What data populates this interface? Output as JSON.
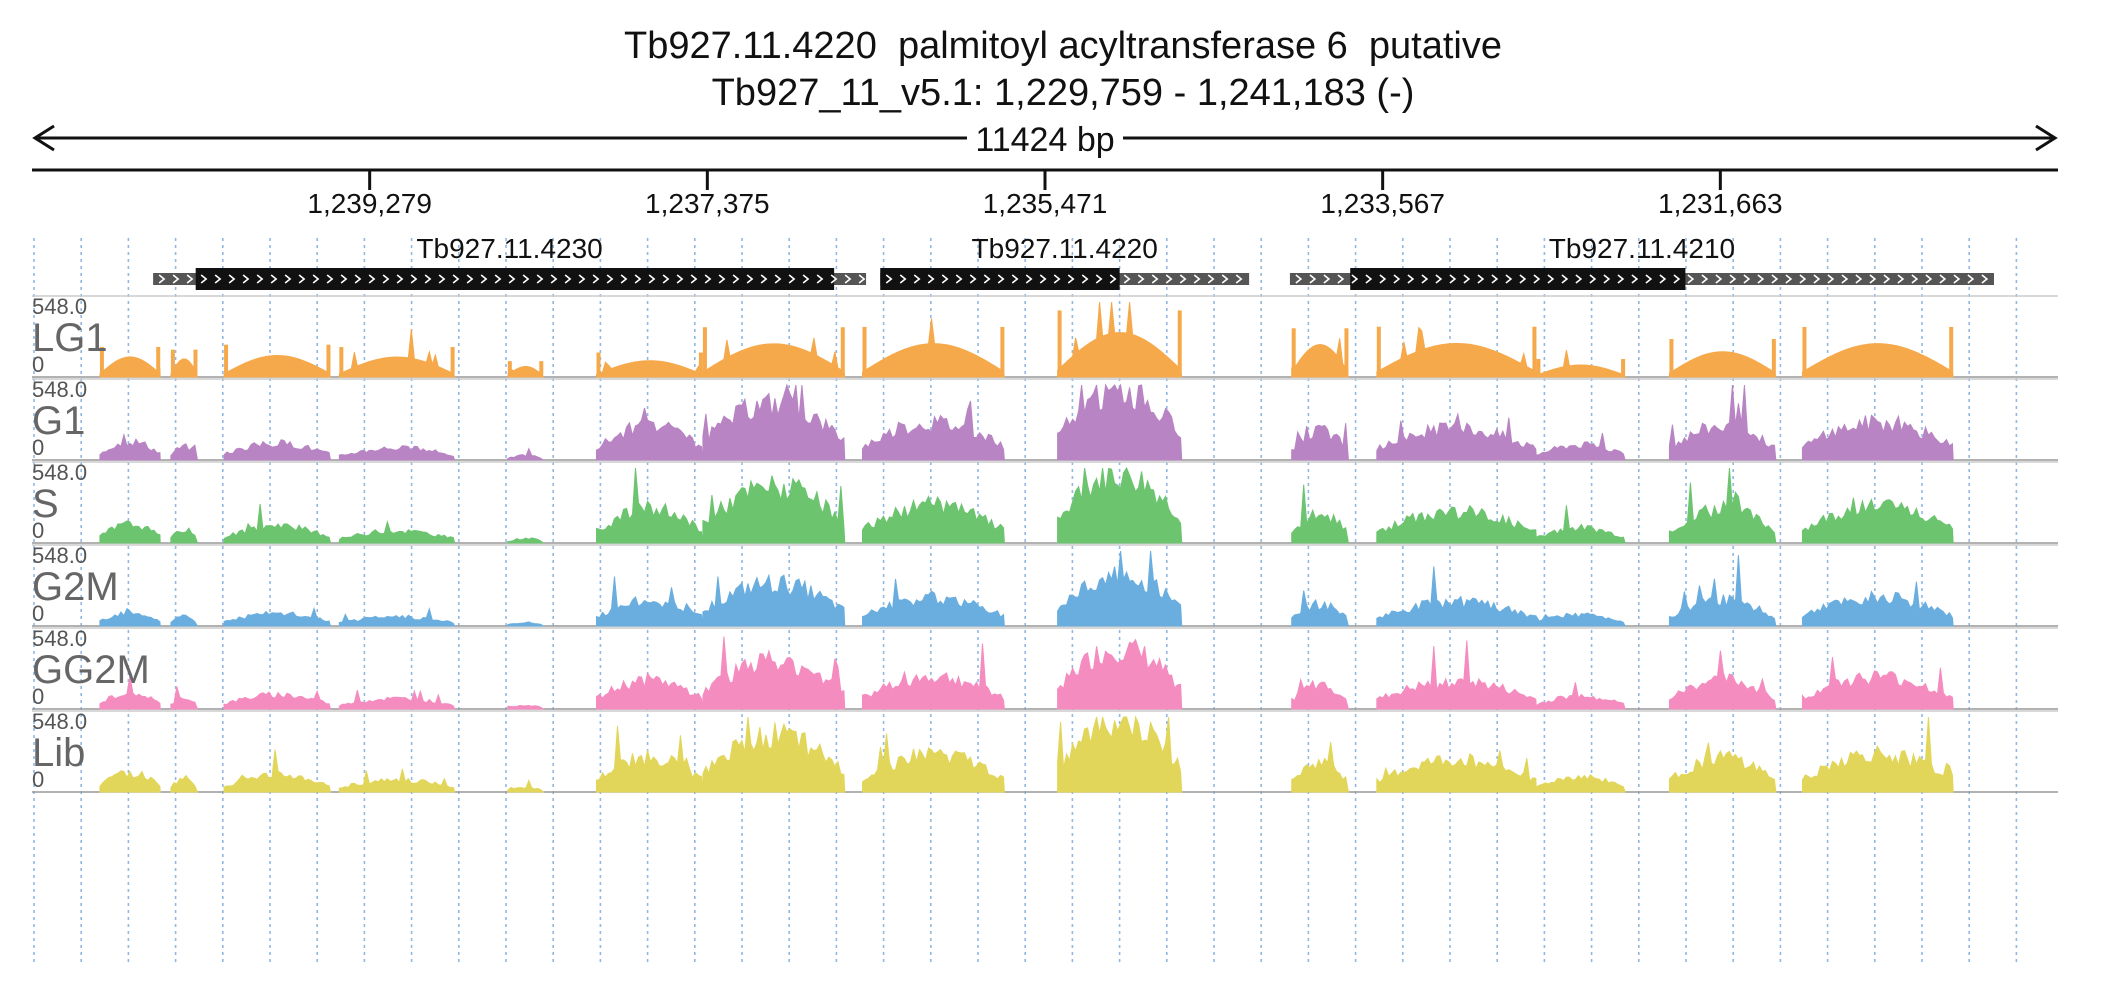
{
  "header": {
    "title_line1": "Tb927.11.4220  palmitoyl acyltransferase 6  putative",
    "title_line2": "Tb927_11_v5.1: 1,229,759 - 1,241,183 (-)",
    "span_label": "11424 bp"
  },
  "chart_data": {
    "type": "area",
    "chromosome": "Tb927_11_v5.1",
    "region": {
      "start": 1229759,
      "end": 1241183,
      "strand": "-"
    },
    "x_ticks": [
      "1,239,279",
      "1,237,375",
      "1,235,471",
      "1,233,567",
      "1,231,663"
    ],
    "x_tick_values": [
      1239279,
      1237375,
      1235471,
      1233567,
      1231663
    ],
    "genes": [
      {
        "name": "Tb927.11.4230",
        "start": 1240500,
        "cds_start": 1240260,
        "cds_end": 1236660,
        "end": 1236480
      },
      {
        "name": "Tb927.11.4220",
        "start": 1236400,
        "cds_start": 1236400,
        "cds_end": 1235050,
        "end": 1234320
      },
      {
        "name": "Tb927.11.4210",
        "start": 1234090,
        "cds_start": 1233750,
        "cds_end": 1231860,
        "end": 1230120
      }
    ],
    "tracks": [
      {
        "name": "LG1",
        "max": "548.0",
        "min": "0",
        "color": "#f5a94a"
      },
      {
        "name": "G1",
        "max": "548.0",
        "min": "0",
        "color": "#b884c3"
      },
      {
        "name": "S",
        "max": "548.0",
        "min": "0",
        "color": "#6cc46f"
      },
      {
        "name": "G2M",
        "max": "548.0",
        "min": "0",
        "color": "#6aaee0"
      },
      {
        "name": "GG2M",
        "max": "548.0",
        "min": "0",
        "color": "#f58cc0"
      },
      {
        "name": "Lib",
        "max": "548.0",
        "min": "0",
        "color": "#e2d65a"
      }
    ],
    "y_range": [
      0,
      548.0
    ]
  }
}
